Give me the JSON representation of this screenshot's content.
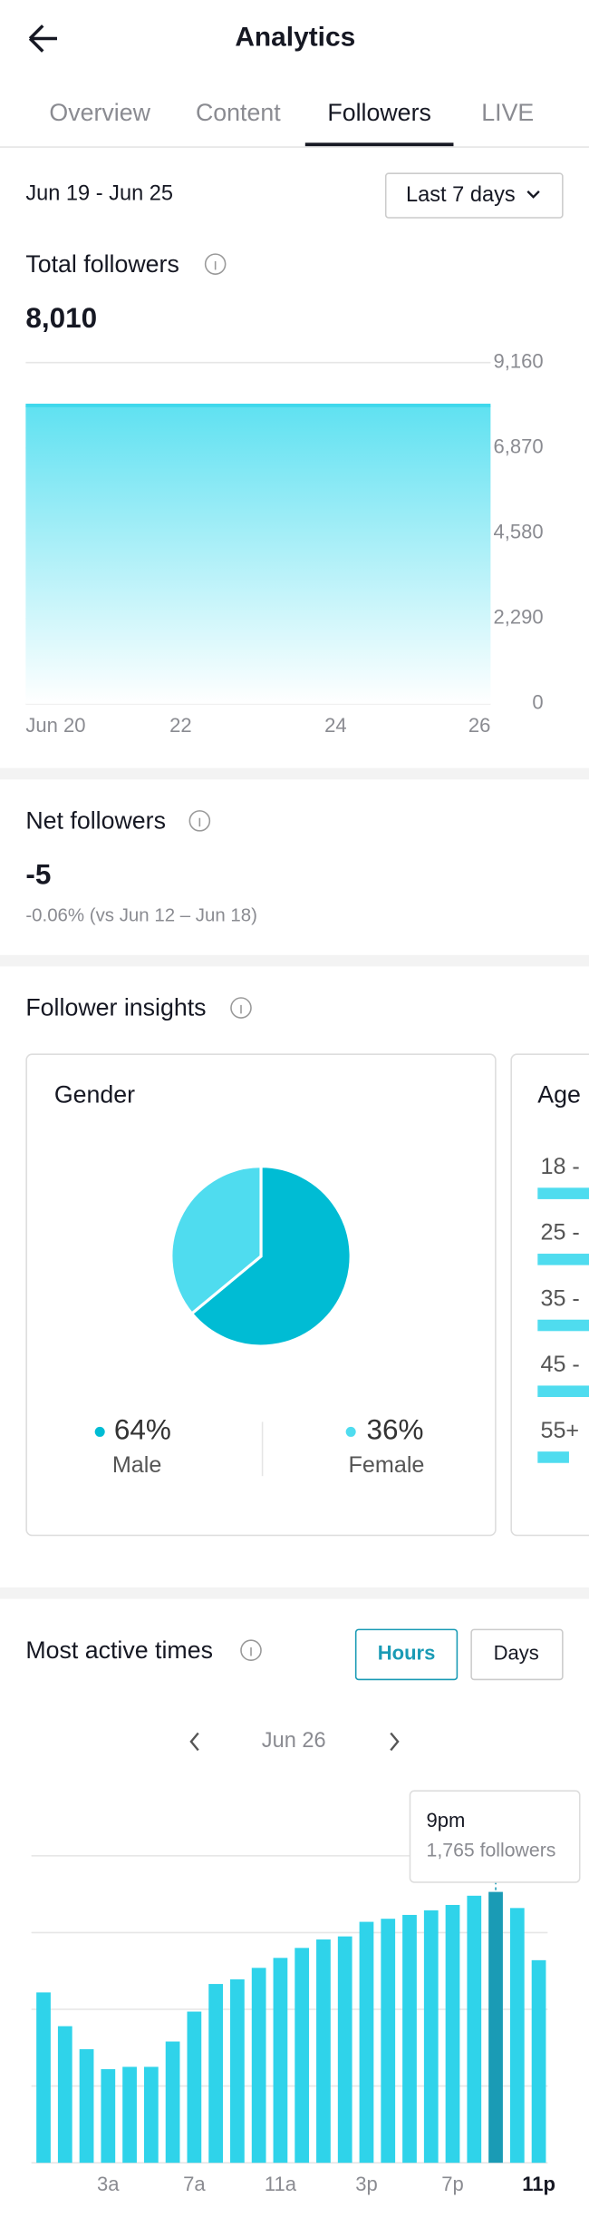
{
  "header": {
    "title": "Analytics"
  },
  "tabs": [
    "Overview",
    "Content",
    "Followers",
    "LIVE"
  ],
  "active_tab": 2,
  "date_range": "Jun 19 - Jun 25",
  "filter": "Last 7 days",
  "total_followers": {
    "label": "Total followers",
    "value": "8,010"
  },
  "net_followers": {
    "label": "Net followers",
    "value": "-5",
    "change": "-0.06% (vs Jun 12 – Jun 18)"
  },
  "follower_insights": {
    "label": "Follower insights",
    "age": {
      "title": "Age",
      "groups": [
        "18 -",
        "25 -",
        "35 -",
        "45 -",
        "55+"
      ]
    }
  },
  "most_active_times": {
    "label": "Most active times",
    "buttons": [
      "Hours",
      "Days"
    ],
    "date": "Jun 26"
  },
  "chart_data": [
    {
      "type": "area",
      "categories": [
        "Jun 20",
        null,
        "22",
        null,
        "24",
        null,
        "26"
      ],
      "values": [
        8010,
        8010,
        8010,
        8010,
        8010,
        8010,
        8010
      ],
      "color": "#3fd8ec",
      "ylim": [
        0,
        9160
      ],
      "yticks": [
        0,
        {
          "value": 2290,
          "label": "2,290"
        },
        {
          "value": 4580,
          "label": "4,580"
        },
        {
          "value": 6870,
          "label": "6,870"
        },
        {
          "value": 9160,
          "label": "9,160"
        }
      ],
      "grid": true
    },
    {
      "type": "pie",
      "title": "Gender",
      "categories": [
        "Male",
        "Female"
      ],
      "values": [
        64,
        36
      ],
      "value_labels": [
        "64%",
        "36%"
      ],
      "colors": [
        "#00bcd4",
        "#4fdcef"
      ]
    },
    {
      "type": "bar",
      "categories": [
        null,
        null,
        null,
        "3a",
        null,
        null,
        null,
        "7a",
        null,
        null,
        null,
        "11a",
        null,
        null,
        null,
        "3p",
        null,
        null,
        null,
        "7p",
        null,
        null,
        null,
        "11p"
      ],
      "values": [
        1110,
        890,
        740,
        610,
        625,
        625,
        790,
        985,
        1165,
        1195,
        1270,
        1335,
        1400,
        1455,
        1475,
        1570,
        1590,
        1615,
        1645,
        1680,
        1740,
        1765,
        1660,
        1320
      ],
      "color": "#2fd3ea",
      "highlight_color": "#1a9bb5",
      "highlight_index": 21,
      "ylim": [
        0,
        2000
      ],
      "tooltip": {
        "title": "9pm",
        "text": "1,765 followers"
      }
    }
  ]
}
